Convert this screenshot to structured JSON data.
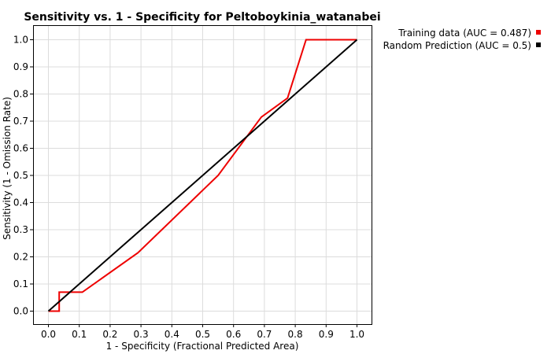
{
  "chart_data": {
    "type": "line",
    "title": "Sensitivity vs. 1 - Specificity for Peltoboykinia_watanabei",
    "xlabel": "1 - Specificity  (Fractional Predicted Area)",
    "ylabel": "Sensitivity  (1 - Omission Rate)",
    "xlim": [
      0.0,
      1.0
    ],
    "ylim": [
      0.0,
      1.0
    ],
    "xticks": [
      "0.0",
      "0.1",
      "0.2",
      "0.3",
      "0.4",
      "0.5",
      "0.6",
      "0.7",
      "0.8",
      "0.9",
      "1.0"
    ],
    "yticks": [
      "0.0",
      "0.1",
      "0.2",
      "0.3",
      "0.4",
      "0.5",
      "0.6",
      "0.7",
      "0.8",
      "0.9",
      "1.0"
    ],
    "grid": true,
    "legend_position": "top-right",
    "series": [
      {
        "name": "Training data (AUC = 0.487)",
        "color": "#ee0000",
        "x": [
          0.0,
          0.035,
          0.035,
          0.04,
          0.11,
          0.29,
          0.55,
          0.69,
          0.775,
          0.835,
          1.0
        ],
        "y": [
          0.0,
          0.0,
          0.07,
          0.07,
          0.07,
          0.215,
          0.5,
          0.715,
          0.785,
          1.0,
          1.0
        ]
      },
      {
        "name": "Random Prediction (AUC = 0.5)",
        "color": "#000000",
        "x": [
          0.0,
          1.0
        ],
        "y": [
          0.0,
          1.0
        ]
      }
    ]
  }
}
